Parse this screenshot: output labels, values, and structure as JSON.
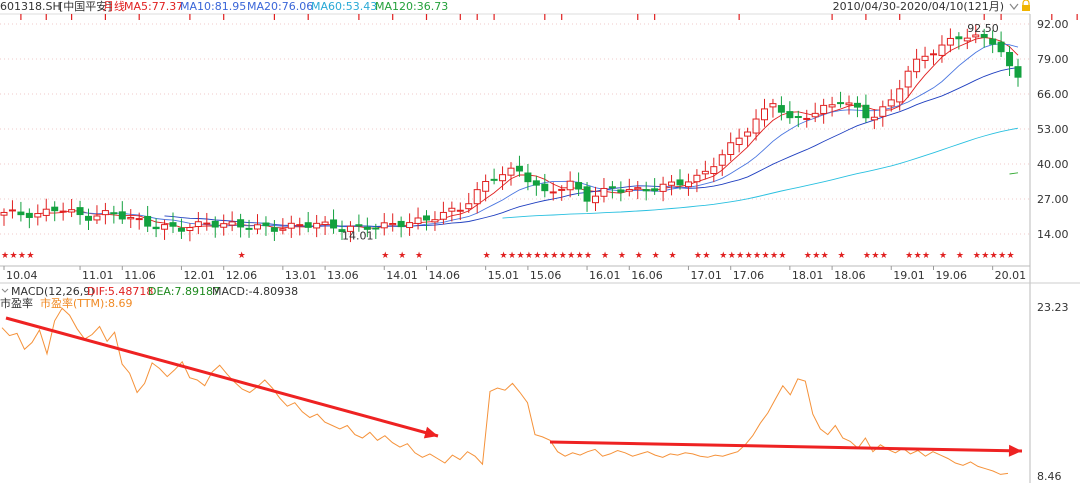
{
  "header": {
    "code": "601318.SH",
    "name": "[中国平安]",
    "period": "月线",
    "ma": [
      {
        "label": "MA5:77.37",
        "color": "#e02020"
      },
      {
        "label": "MA10:81.95",
        "color": "#3a66d8"
      },
      {
        "label": "MA20:76.06",
        "color": "#3a66d8"
      },
      {
        "label": "MA60:53.43",
        "color": "#29a9d6"
      },
      {
        "label": "MA120:36.73",
        "color": "#23a03a"
      }
    ],
    "range": "2010/04/30-2020/04/10(121月)"
  },
  "macd_line": {
    "items": [
      {
        "label": "MACD(12,26,9)",
        "color": "#333333"
      },
      {
        "label": "DIF:5.48718",
        "color": "#e02020"
      },
      {
        "label": "DEA:7.89187",
        "color": "#1f8a1f"
      },
      {
        "label": "MACD:-4.80938",
        "color": "#333333"
      }
    ]
  },
  "pe_header": {
    "label": "市盈率",
    "value": "市盈率(TTM):8.69",
    "value_color": "#f08a24"
  },
  "icons": [
    "chevron-down-icon",
    "lock-icon",
    "chevron-expand-icon"
  ],
  "colors": {
    "up": "#e02020",
    "down": "#13a13f",
    "ma5": "#e02020",
    "ma10": "#4a76e0",
    "ma20": "#2040c0",
    "ma60": "#29c0e0",
    "ma120": "#33aa33",
    "pe": "#f5923a",
    "arrow": "#ee2222",
    "grid": "#f0c8c8"
  },
  "chart_data": {
    "type": "line",
    "price_axis": {
      "ticks": [
        "92.00",
        "79.00",
        "66.00",
        "53.00",
        "40.00",
        "27.00",
        "14.00"
      ],
      "values": [
        92,
        79,
        66,
        53,
        40,
        27,
        14
      ]
    },
    "date_labels": [
      "10.04",
      "11.01",
      "11.06",
      "12.01",
      "12.06",
      "13.01",
      "13.06",
      "14.01",
      "14.06",
      "15.01",
      "15.06",
      "16.01",
      "16.06",
      "17.01",
      "17.06",
      "18.01",
      "18.06",
      "19.01",
      "19.06",
      "20.01"
    ],
    "annotations": {
      "high": "92.50",
      "low": "14.01"
    },
    "pe_axis": {
      "ticks": [
        "23.23",
        "8.46"
      ],
      "max": 23.23,
      "min": 8.46
    },
    "pe_series": [
      21.5,
      20.8,
      21.0,
      19.6,
      20.2,
      21.3,
      19.2,
      22.1,
      23.2,
      22.6,
      21.4,
      20.5,
      20.9,
      21.6,
      20.3,
      21.1,
      18.3,
      17.5,
      15.8,
      16.6,
      18.4,
      17.9,
      17.2,
      17.8,
      18.5,
      17.1,
      16.9,
      16.4,
      17.6,
      18.2,
      17.4,
      16.7,
      16.1,
      15.8,
      16.3,
      16.9,
      16.2,
      15.3,
      14.6,
      14.9,
      14.1,
      13.6,
      13.9,
      13.2,
      12.9,
      12.6,
      12.9,
      12.1,
      11.8,
      12.3,
      11.6,
      12.0,
      11.4,
      11.0,
      11.3,
      10.5,
      10.1,
      10.4,
      10.0,
      9.6,
      10.3,
      9.9,
      10.6,
      10.2,
      9.5,
      15.9,
      16.2,
      16.0,
      16.6,
      15.8,
      14.9,
      12.1,
      11.9,
      11.6,
      10.6,
      10.2,
      10.5,
      10.3,
      10.6,
      10.8,
      10.2,
      10.4,
      10.7,
      10.5,
      10.2,
      10.4,
      10.6,
      10.3,
      10.1,
      10.4,
      10.3,
      10.5,
      10.4,
      10.2,
      10.1,
      10.3,
      10.2,
      10.4,
      10.6,
      11.2,
      12.0,
      13.1,
      14.0,
      15.2,
      16.4,
      15.6,
      17.0,
      16.8,
      13.9,
      12.6,
      12.1,
      12.9,
      11.8,
      11.5,
      10.9,
      11.8,
      10.6,
      11.2,
      10.8,
      10.5,
      10.9,
      10.4,
      10.7,
      10.2,
      10.6,
      10.3,
      10.0,
      9.6,
      9.4,
      9.7,
      9.3,
      9.1,
      8.9,
      8.6,
      8.69
    ]
  }
}
